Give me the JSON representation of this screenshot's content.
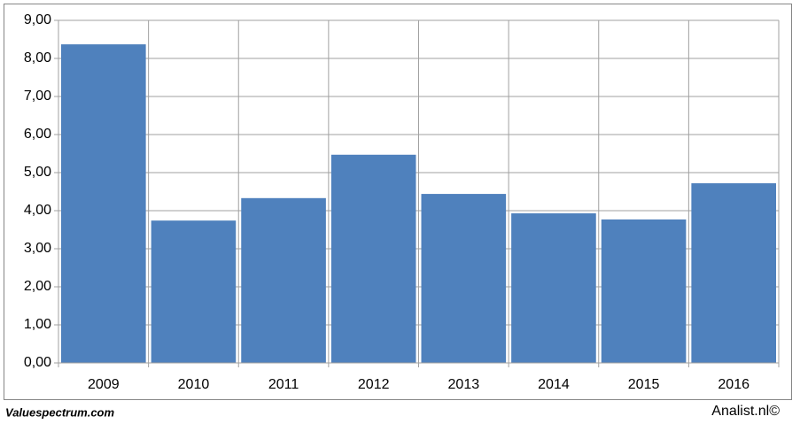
{
  "chart_data": {
    "type": "bar",
    "categories": [
      "2009",
      "2010",
      "2011",
      "2012",
      "2013",
      "2014",
      "2015",
      "2016"
    ],
    "values": [
      8.37,
      3.74,
      4.33,
      5.47,
      4.44,
      3.93,
      3.77,
      4.72
    ],
    "color": "#4f81bd",
    "ylim": [
      0,
      9
    ],
    "yticks": [
      {
        "value": 0,
        "label": "0,00"
      },
      {
        "value": 1,
        "label": "1,00"
      },
      {
        "value": 2,
        "label": "2,00"
      },
      {
        "value": 3,
        "label": "3,00"
      },
      {
        "value": 4,
        "label": "4,00"
      },
      {
        "value": 5,
        "label": "5,00"
      },
      {
        "value": 6,
        "label": "6,00"
      },
      {
        "value": 7,
        "label": "7,00"
      },
      {
        "value": 8,
        "label": "8,00"
      },
      {
        "value": 9,
        "label": "9,00"
      }
    ],
    "grid": true
  },
  "credits": {
    "left": "Valuespectrum.com",
    "right": "Analist.nl©"
  }
}
